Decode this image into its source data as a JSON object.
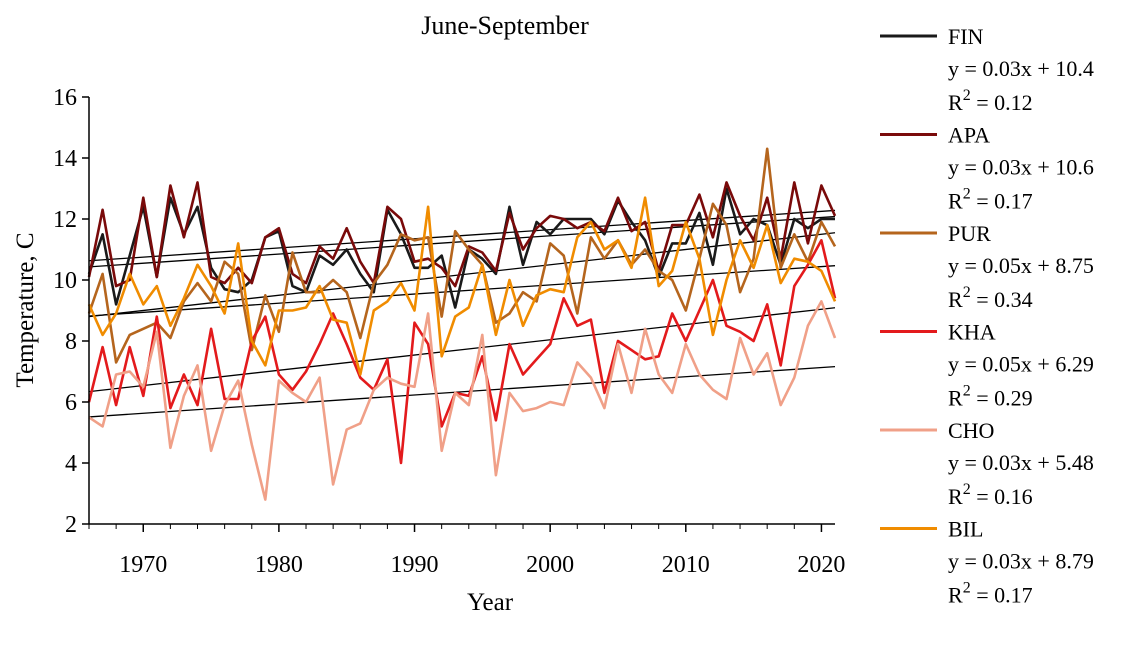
{
  "chart_data": {
    "type": "line",
    "title": "June-September",
    "xlabel": "Year",
    "ylabel": "Temperature, C",
    "xlim": [
      1966,
      2021
    ],
    "ylim": [
      2,
      16
    ],
    "xticks": [
      1970,
      1980,
      1990,
      2000,
      2010,
      2020
    ],
    "yticks": [
      2,
      4,
      6,
      8,
      10,
      12,
      14,
      16
    ],
    "grid": false,
    "legend_position": "right",
    "x": [
      1966,
      1967,
      1968,
      1969,
      1970,
      1971,
      1972,
      1973,
      1974,
      1975,
      1976,
      1977,
      1978,
      1979,
      1980,
      1981,
      1982,
      1983,
      1984,
      1985,
      1986,
      1987,
      1988,
      1989,
      1990,
      1991,
      1992,
      1993,
      1994,
      1995,
      1996,
      1997,
      1998,
      1999,
      2000,
      2001,
      2002,
      2003,
      2004,
      2005,
      2006,
      2007,
      2008,
      2009,
      2010,
      2011,
      2012,
      2013,
      2014,
      2015,
      2016,
      2017,
      2018,
      2019,
      2020,
      2021
    ],
    "series": [
      {
        "name": "FIN",
        "color": "#1a1a1a",
        "equation": "y = 0.03x + 10.4",
        "r2_value": "= 0.12",
        "trend": {
          "slope": 0.03,
          "intercept": 10.4
        },
        "values": [
          10.2,
          11.5,
          9.2,
          10.8,
          12.4,
          10.1,
          12.7,
          11.5,
          12.4,
          10.4,
          9.7,
          9.6,
          10.0,
          11.4,
          11.6,
          9.8,
          9.6,
          10.8,
          10.5,
          11.0,
          10.2,
          9.6,
          12.3,
          11.5,
          10.4,
          10.4,
          10.8,
          9.1,
          11.0,
          10.7,
          10.2,
          12.4,
          10.5,
          11.9,
          11.5,
          12.0,
          12.0,
          12.0,
          11.5,
          12.6,
          11.9,
          11.3,
          10.1,
          11.2,
          11.2,
          12.2,
          10.5,
          13.0,
          11.5,
          12.0,
          11.8,
          10.5,
          12.0,
          11.7,
          12.0,
          12.0
        ]
      },
      {
        "name": "APA",
        "color": "#7a0a0a",
        "equation": "y = 0.03x + 10.6",
        "r2_value": "= 0.17",
        "trend": {
          "slope": 0.03,
          "intercept": 10.6
        },
        "values": [
          10.1,
          12.3,
          9.8,
          10.0,
          12.7,
          10.1,
          13.1,
          11.4,
          13.2,
          10.1,
          9.9,
          10.4,
          9.9,
          11.4,
          11.7,
          10.2,
          9.9,
          11.1,
          10.7,
          11.7,
          10.6,
          9.9,
          12.4,
          12.0,
          10.6,
          10.7,
          10.4,
          9.8,
          11.1,
          10.9,
          10.3,
          12.2,
          11.0,
          11.7,
          12.1,
          12.0,
          11.7,
          11.9,
          11.6,
          12.7,
          11.6,
          11.9,
          10.3,
          11.8,
          11.8,
          12.8,
          11.4,
          13.2,
          12.1,
          11.3,
          12.7,
          10.7,
          13.2,
          11.2,
          13.1,
          12.1
        ]
      },
      {
        "name": "PUR",
        "color": "#b5651d",
        "equation": "y = 0.05x + 8.75",
        "r2_value": "= 0.34",
        "trend": {
          "slope": 0.05,
          "intercept": 8.75
        },
        "values": [
          8.9,
          10.2,
          7.3,
          8.2,
          8.4,
          8.6,
          8.1,
          9.3,
          9.9,
          9.3,
          10.6,
          10.2,
          7.7,
          9.5,
          8.3,
          10.9,
          9.6,
          9.6,
          10.0,
          9.6,
          8.1,
          9.9,
          10.5,
          11.5,
          11.3,
          11.4,
          8.8,
          11.6,
          11.0,
          10.5,
          8.6,
          8.9,
          9.6,
          9.3,
          11.2,
          10.8,
          8.9,
          11.4,
          10.7,
          11.3,
          10.5,
          11.0,
          10.3,
          10.0,
          9.0,
          10.7,
          12.5,
          11.8,
          9.6,
          10.7,
          14.3,
          10.4,
          11.5,
          10.6,
          11.9,
          11.1
        ]
      },
      {
        "name": "KHA",
        "color": "#e31a1c",
        "equation": "y = 0.05x + 6.29",
        "r2_value": "= 0.29",
        "trend": {
          "slope": 0.05,
          "intercept": 6.29
        },
        "values": [
          6.0,
          7.8,
          5.9,
          7.8,
          6.2,
          8.8,
          5.8,
          6.9,
          5.9,
          8.4,
          6.1,
          6.1,
          8.0,
          8.8,
          6.9,
          6.4,
          7.0,
          7.9,
          8.9,
          7.9,
          6.8,
          6.4,
          7.4,
          4.0,
          8.6,
          7.9,
          5.2,
          6.3,
          6.2,
          7.5,
          5.4,
          7.9,
          6.9,
          7.4,
          7.9,
          9.4,
          8.5,
          8.7,
          6.3,
          8.0,
          7.7,
          7.4,
          7.5,
          8.9,
          8.0,
          9.0,
          10.0,
          8.5,
          8.3,
          8.0,
          9.2,
          7.2,
          9.8,
          10.5,
          11.3,
          9.4
        ]
      },
      {
        "name": "CHO",
        "color": "#f0a088",
        "equation": "y = 0.03x + 5.48",
        "r2_value": "= 0.16",
        "trend": {
          "slope": 0.03,
          "intercept": 5.48
        },
        "values": [
          5.5,
          5.2,
          6.9,
          7.0,
          6.5,
          8.3,
          4.5,
          6.2,
          7.2,
          4.4,
          5.9,
          6.7,
          4.6,
          2.8,
          6.7,
          6.3,
          6.0,
          6.8,
          3.3,
          5.1,
          5.3,
          6.4,
          6.8,
          6.6,
          6.5,
          8.9,
          4.4,
          6.3,
          5.9,
          8.2,
          3.6,
          6.3,
          5.7,
          5.8,
          6.0,
          5.9,
          7.3,
          6.8,
          5.8,
          7.9,
          6.3,
          8.4,
          6.9,
          6.3,
          7.9,
          6.9,
          6.4,
          6.1,
          8.1,
          6.9,
          7.6,
          5.9,
          6.8,
          8.5,
          9.3,
          8.1
        ]
      },
      {
        "name": "BIL",
        "color": "#f08c00",
        "equation": "y = 0.03x + 8.79",
        "r2_value": "= 0.17",
        "trend": {
          "slope": 0.03,
          "intercept": 8.79
        },
        "values": [
          9.2,
          8.2,
          8.9,
          10.2,
          9.2,
          9.8,
          8.5,
          9.4,
          10.5,
          9.8,
          8.9,
          11.2,
          8.0,
          7.2,
          9.0,
          9.0,
          9.1,
          9.8,
          8.7,
          8.6,
          6.9,
          9.0,
          9.3,
          9.9,
          9.0,
          12.4,
          7.5,
          8.8,
          9.1,
          10.5,
          8.2,
          10.0,
          8.5,
          9.5,
          9.7,
          9.6,
          11.4,
          11.9,
          11.0,
          11.3,
          10.4,
          12.7,
          9.8,
          10.3,
          11.9,
          10.7,
          8.2,
          10.0,
          11.3,
          10.4,
          11.8,
          9.9,
          10.7,
          10.6,
          10.3,
          9.3
        ]
      }
    ],
    "trendline_color": "#000000"
  }
}
